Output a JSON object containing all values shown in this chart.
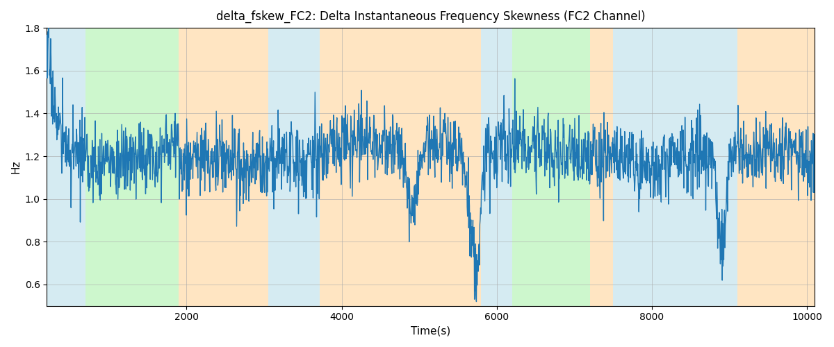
{
  "title": "delta_fskew_FC2: Delta Instantaneous Frequency Skewness (FC2 Channel)",
  "xlabel": "Time(s)",
  "ylabel": "Hz",
  "xlim": [
    200,
    10100
  ],
  "ylim": [
    0.5,
    1.8
  ],
  "yticks": [
    0.6,
    0.8,
    1.0,
    1.2,
    1.4,
    1.6,
    1.8
  ],
  "xticks": [
    2000,
    4000,
    6000,
    8000,
    10000
  ],
  "line_color": "#1f77b4",
  "line_width": 1.0,
  "grid_color": "#aaaaaa",
  "grid_alpha": 0.6,
  "bands": [
    {
      "xmin": 200,
      "xmax": 700,
      "color": "#add8e6",
      "alpha": 0.5
    },
    {
      "xmin": 700,
      "xmax": 1900,
      "color": "#90ee90",
      "alpha": 0.45
    },
    {
      "xmin": 1900,
      "xmax": 3050,
      "color": "#ffd59a",
      "alpha": 0.6
    },
    {
      "xmin": 3050,
      "xmax": 3720,
      "color": "#add8e6",
      "alpha": 0.5
    },
    {
      "xmin": 3720,
      "xmax": 5800,
      "color": "#ffd59a",
      "alpha": 0.6
    },
    {
      "xmin": 5800,
      "xmax": 6200,
      "color": "#add8e6",
      "alpha": 0.5
    },
    {
      "xmin": 6200,
      "xmax": 7200,
      "color": "#90ee90",
      "alpha": 0.45
    },
    {
      "xmin": 7200,
      "xmax": 7500,
      "color": "#ffd59a",
      "alpha": 0.6
    },
    {
      "xmin": 7500,
      "xmax": 9100,
      "color": "#add8e6",
      "alpha": 0.5
    },
    {
      "xmin": 9100,
      "xmax": 10100,
      "color": "#ffd59a",
      "alpha": 0.6
    }
  ],
  "seed": 17,
  "n_points": 2000
}
